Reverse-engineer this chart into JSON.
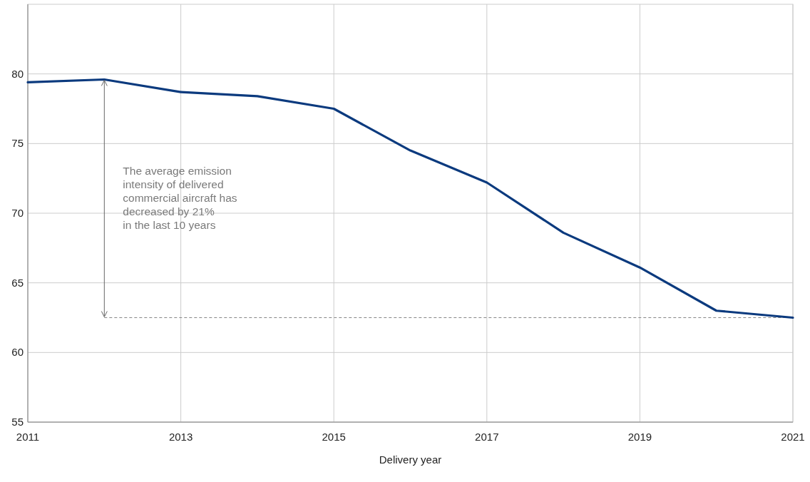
{
  "chart_data": {
    "type": "line",
    "xlabel": "Delivery year",
    "x": [
      2011,
      2012,
      2013,
      2014,
      2015,
      2016,
      2017,
      2018,
      2019,
      2020,
      2021
    ],
    "series": [
      {
        "color": "#0b3a7e",
        "values": [
          79.4,
          79.6,
          78.7,
          78.4,
          77.5,
          74.5,
          72.2,
          68.6,
          66.1,
          63.0,
          62.5
        ]
      }
    ],
    "xlim": [
      2011,
      2021
    ],
    "xticks": [
      2011,
      2013,
      2015,
      2017,
      2019,
      2021
    ],
    "ylim": [
      55,
      85
    ],
    "yticks": [
      55,
      60,
      65,
      70,
      75,
      80
    ],
    "grid": true,
    "marker": "none",
    "line_style": "solid",
    "ref_lines": [
      {
        "axis": "y",
        "value": 62.5,
        "label": null,
        "color": "#888888",
        "line_style": "dashed"
      }
    ],
    "annotations": [
      "The average emission\nintensity of delivered\ncommercial aircraft has\ndecreased by 21%\nin the last 10 years"
    ]
  }
}
